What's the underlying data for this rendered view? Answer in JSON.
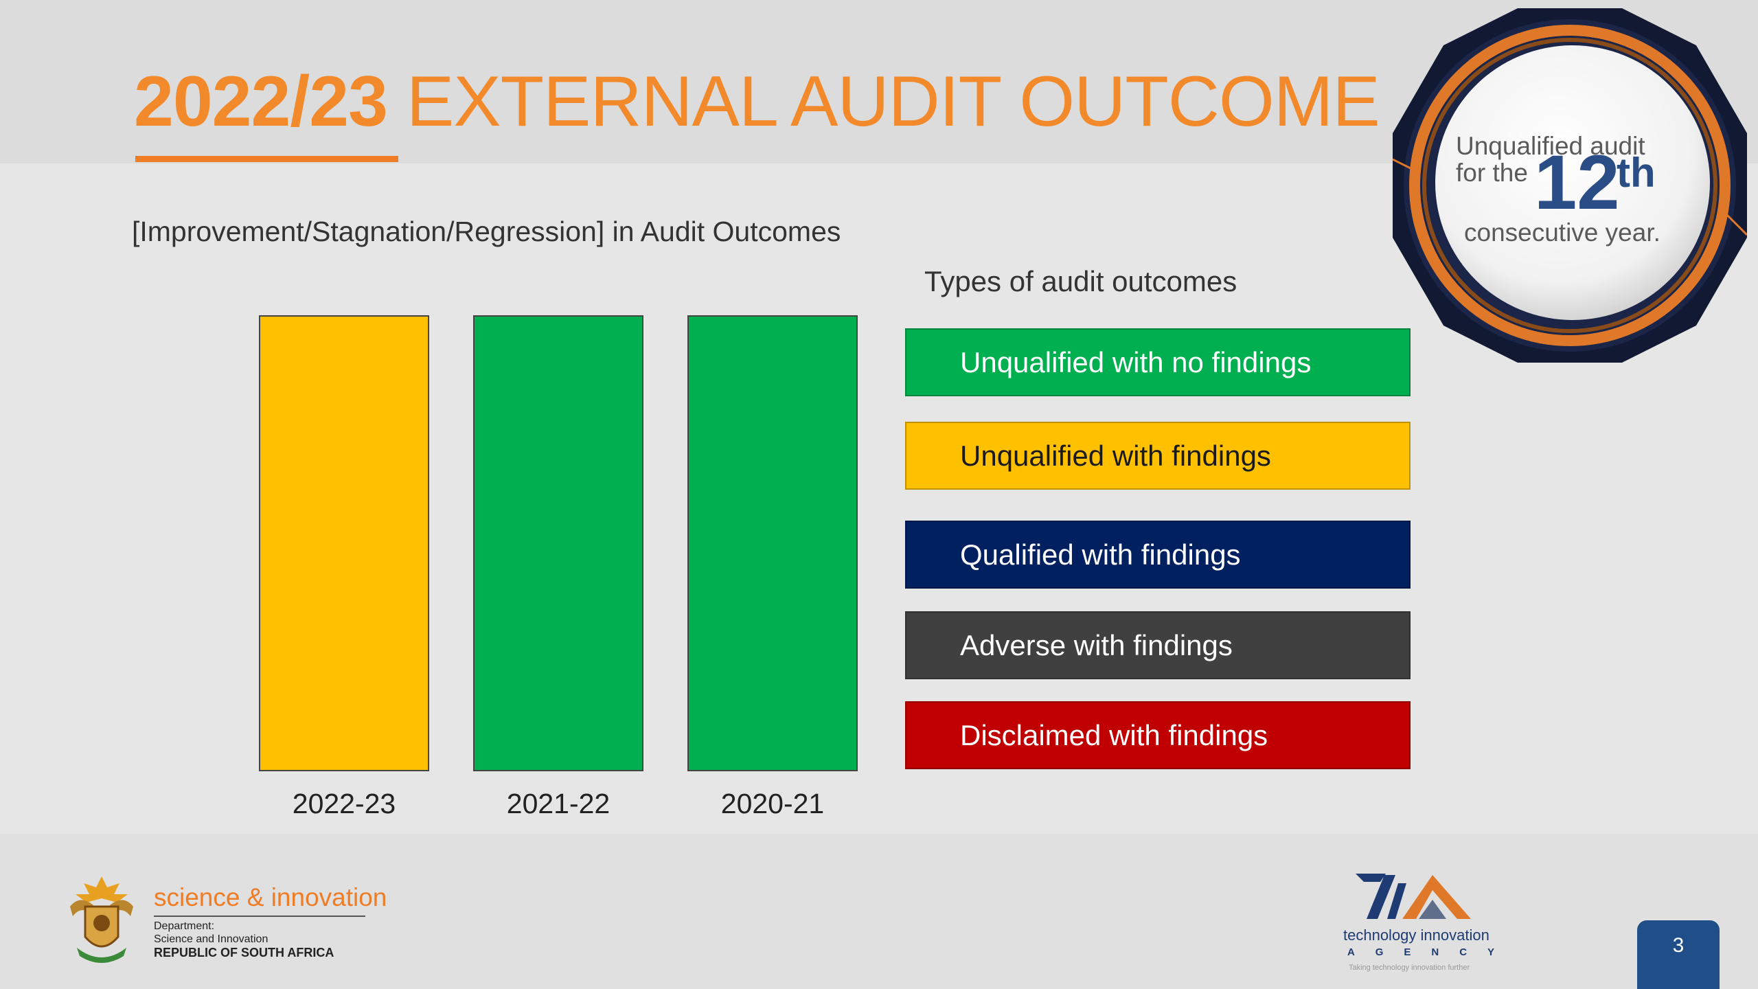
{
  "title": {
    "year": "2022/23",
    "rest": " EXTERNAL AUDIT OUTCOME"
  },
  "subtitle": "[Improvement/Stagnation/Regression] in Audit Outcomes",
  "legend": {
    "title": "Types of audit outcomes",
    "items": [
      {
        "label": "Unqualified with no findings",
        "color": "#00b050",
        "text_color": "#ffffff"
      },
      {
        "label": "Unqualified with findings",
        "color": "#ffc000",
        "text_color": "#1a1a1a"
      },
      {
        "label": "Qualified with findings",
        "color": "#002060",
        "text_color": "#ffffff"
      },
      {
        "label": "Adverse with findings",
        "color": "#404040",
        "text_color": "#ffffff"
      },
      {
        "label": "Disclaimed with findings",
        "color": "#c00000",
        "text_color": "#ffffff"
      }
    ]
  },
  "chart_data": {
    "type": "bar",
    "title": "",
    "categories": [
      "2022-23",
      "2021-22",
      "2020-21"
    ],
    "values": [
      1,
      1,
      1
    ],
    "outcomes": [
      "Unqualified with findings",
      "Unqualified with no findings",
      "Unqualified with no findings"
    ],
    "colors": [
      "#ffc000",
      "#00b050",
      "#00b050"
    ],
    "grid": false,
    "legend_position": "right"
  },
  "badge": {
    "line1": "Unqualified audit",
    "line2_prefix": "for the",
    "number": "12",
    "suffix": "th",
    "line3": "consecutive year."
  },
  "footer": {
    "dept_name": "science & innovation",
    "dept_lines": [
      "Department:",
      "Science and Innovation",
      "REPUBLIC OF SOUTH AFRICA"
    ],
    "agency_name": "technology innovation",
    "agency_word_letters": [
      "A",
      "G",
      "E",
      "N",
      "C",
      "Y"
    ],
    "agency_tagline": "Taking technology innovation further",
    "page_number": "3"
  },
  "colors": {
    "accent_orange": "#f28a2c",
    "navy": "#1f4e89"
  }
}
